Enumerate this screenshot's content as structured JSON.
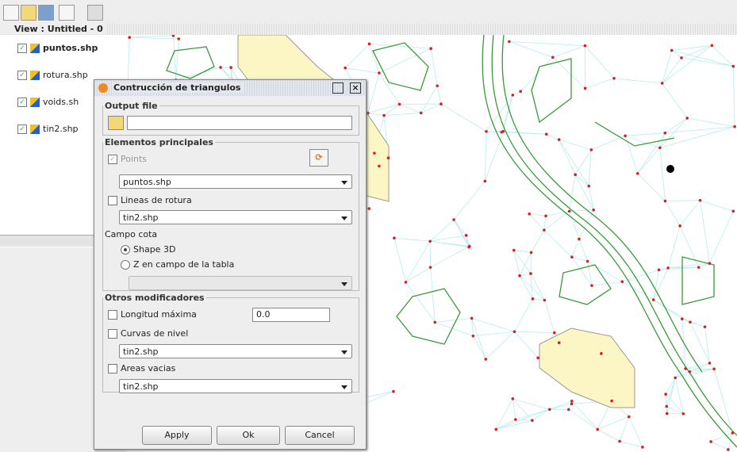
{
  "view": {
    "title": "View : Untitled - 0"
  },
  "layers": [
    {
      "name": "puntos.shp",
      "checked": true
    },
    {
      "name": "rotura.shp",
      "checked": true
    },
    {
      "name": "voids.sh",
      "checked": true
    },
    {
      "name": "tin2.shp",
      "checked": true
    }
  ],
  "dialog": {
    "title": "Contrucción de triangulos",
    "output": {
      "legend": "Output file"
    },
    "main": {
      "legend": "Elementos principales",
      "points_label": "Points",
      "points_layer": "puntos.shp",
      "breaklines_label": "Lineas de rotura",
      "breaklines_layer": "tin2.shp",
      "elevation_label": "Campo cota",
      "option_shape": "Shape 3D",
      "option_field": "Z en campo de la tabla"
    },
    "other": {
      "legend": "Otros modificadores",
      "max_length_label": "Longitud máxima",
      "max_length_value": "0.0",
      "contours_label": "Curvas de nivel",
      "contours_layer": "tin2.shp",
      "voids_label": "Areas vacias",
      "voids_layer": "tin2.shp"
    },
    "buttons": [
      "Apply",
      "Ok",
      "Cancel"
    ]
  }
}
